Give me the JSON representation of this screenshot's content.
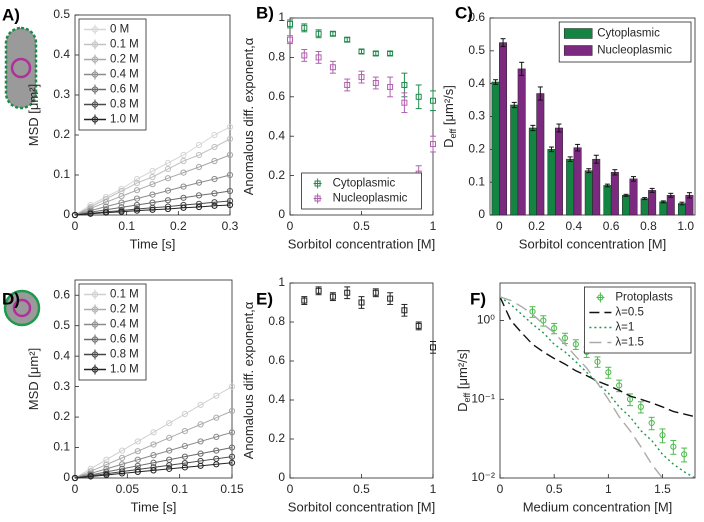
{
  "chart_data": [
    {
      "type": "line",
      "panel": "A)",
      "xlabel": "Time [s]",
      "ylabel": "MSD [μm²]",
      "xlim": [
        0,
        0.3
      ],
      "xticks": [
        0,
        0.1,
        0.2,
        0.3
      ],
      "ylim": [
        0,
        0.5
      ],
      "yticks": [
        0,
        0.1,
        0.2,
        0.3,
        0.4,
        0.5
      ],
      "legend": "upper left",
      "x": [
        0,
        0.03,
        0.06,
        0.09,
        0.12,
        0.15,
        0.18,
        0.21,
        0.24,
        0.27,
        0.3
      ],
      "series": [
        {
          "name": "0 M",
          "color": "#d6d6d6",
          "marker": "circle",
          "values": [
            0,
            0.025,
            0.045,
            0.065,
            0.09,
            0.11,
            0.13,
            0.15,
            0.175,
            0.2,
            0.22
          ]
        },
        {
          "name": "0.1 M",
          "color": "#c2c2c2",
          "marker": "circle",
          "values": [
            0,
            0.02,
            0.04,
            0.06,
            0.08,
            0.095,
            0.115,
            0.135,
            0.15,
            0.17,
            0.19
          ]
        },
        {
          "name": "0.2 M",
          "color": "#a8a8a8",
          "marker": "circle",
          "values": [
            0,
            0.016,
            0.032,
            0.047,
            0.062,
            0.077,
            0.092,
            0.106,
            0.12,
            0.135,
            0.15
          ]
        },
        {
          "name": "0.4 M",
          "color": "#8c8c8c",
          "marker": "circle",
          "values": [
            0,
            0.011,
            0.021,
            0.031,
            0.041,
            0.051,
            0.061,
            0.071,
            0.081,
            0.09,
            0.1
          ]
        },
        {
          "name": "0.6 M",
          "color": "#6b6b6b",
          "marker": "circle",
          "values": [
            0,
            0.007,
            0.013,
            0.019,
            0.025,
            0.031,
            0.037,
            0.043,
            0.049,
            0.054,
            0.06
          ]
        },
        {
          "name": "0.8 M",
          "color": "#4a4a4a",
          "marker": "circle",
          "values": [
            0,
            0.004,
            0.008,
            0.011,
            0.015,
            0.018,
            0.021,
            0.025,
            0.028,
            0.032,
            0.035
          ]
        },
        {
          "name": "1.0 M",
          "color": "#222222",
          "marker": "circle",
          "values": [
            0,
            0.003,
            0.006,
            0.008,
            0.011,
            0.013,
            0.015,
            0.018,
            0.02,
            0.023,
            0.025
          ]
        }
      ]
    },
    {
      "type": "scatter",
      "panel": "B)",
      "xlabel": "Sorbitol concentration [M]",
      "ylabel": "Anomalous diff. exponent,α",
      "xlim": [
        0,
        1
      ],
      "xticks": [
        0,
        0.5,
        1
      ],
      "ylim": [
        0,
        1
      ],
      "yticks": [
        0,
        0.2,
        0.4,
        0.6,
        0.8,
        1
      ],
      "legend": "lower center",
      "x": [
        0,
        0.1,
        0.2,
        0.3,
        0.4,
        0.5,
        0.6,
        0.7,
        0.8,
        0.9,
        1
      ],
      "series": [
        {
          "name": "Cytoplasmic",
          "color": "#1f8a4c",
          "marker": "square",
          "values": [
            0.97,
            0.95,
            0.92,
            0.92,
            0.89,
            0.83,
            0.82,
            0.82,
            0.66,
            0.6,
            0.58
          ],
          "errors": [
            0.02,
            0.02,
            0.02,
            0.01,
            0.01,
            0.01,
            0.01,
            0.01,
            0.06,
            0.06,
            0.05
          ]
        },
        {
          "name": "Nucleoplasmic",
          "color": "#b060b0",
          "marker": "square",
          "values": [
            0.89,
            0.81,
            0.8,
            0.75,
            0.66,
            0.7,
            0.67,
            0.65,
            0.57,
            0.21,
            0.36
          ],
          "errors": [
            0.02,
            0.03,
            0.03,
            0.03,
            0.03,
            0.03,
            0.03,
            0.05,
            0.05,
            0.04,
            0.04
          ]
        }
      ]
    },
    {
      "type": "bar",
      "panel": "C)",
      "xlabel": "Sorbitol concentration [M]",
      "ylabel": "D",
      "ylabel_sub": "eff",
      "ylabel_unit": " [μm²/s]",
      "ylim": [
        0,
        0.6
      ],
      "yticks": [
        0,
        0.1,
        0.2,
        0.3,
        0.4,
        0.5,
        0.6
      ],
      "legend": "upper right",
      "categories": [
        "0",
        null,
        "0.2",
        null,
        "0.4",
        null,
        "0.6",
        null,
        "0.8",
        null,
        "1.0"
      ],
      "series": [
        {
          "name": "Cytoplasmic",
          "color": "#148443",
          "values": [
            0.405,
            0.335,
            0.265,
            0.2,
            0.17,
            0.135,
            0.09,
            0.06,
            0.05,
            0.04,
            0.035
          ],
          "errors": [
            0.007,
            0.008,
            0.008,
            0.007,
            0.007,
            0.006,
            0.004,
            0.003,
            0.003,
            0.003,
            0.004
          ]
        },
        {
          "name": "Nucleoplasmic",
          "color": "#7b2a7f",
          "values": [
            0.525,
            0.445,
            0.37,
            0.265,
            0.205,
            0.17,
            0.13,
            0.11,
            0.075,
            0.06,
            0.06
          ],
          "errors": [
            0.012,
            0.02,
            0.02,
            0.012,
            0.01,
            0.012,
            0.008,
            0.007,
            0.006,
            0.006,
            0.008
          ]
        }
      ]
    },
    {
      "type": "line",
      "panel": "D)",
      "xlabel": "Time [s]",
      "ylabel": "MSD [μm²]",
      "xlim": [
        0,
        0.15
      ],
      "xticks": [
        0,
        0.05,
        0.1,
        0.15
      ],
      "ylim": [
        0,
        0.65
      ],
      "yticks": [
        0,
        0.1,
        0.2,
        0.3,
        0.4,
        0.5,
        0.6
      ],
      "legend": "upper left",
      "x": [
        0,
        0.015,
        0.03,
        0.045,
        0.06,
        0.075,
        0.09,
        0.105,
        0.12,
        0.135,
        0.15
      ],
      "series": [
        {
          "name": "0.1 M",
          "color": "#cfcfcf",
          "marker": "circle",
          "values": [
            0,
            0.03,
            0.06,
            0.09,
            0.12,
            0.15,
            0.18,
            0.21,
            0.24,
            0.27,
            0.3
          ]
        },
        {
          "name": "0.2 M",
          "color": "#ababab",
          "marker": "circle",
          "values": [
            0,
            0.022,
            0.044,
            0.066,
            0.088,
            0.11,
            0.132,
            0.154,
            0.176,
            0.198,
            0.22
          ]
        },
        {
          "name": "0.4 M",
          "color": "#8a8a8a",
          "marker": "circle",
          "values": [
            0,
            0.015,
            0.03,
            0.045,
            0.06,
            0.075,
            0.09,
            0.105,
            0.12,
            0.135,
            0.15
          ]
        },
        {
          "name": "0.6 M",
          "color": "#6a6a6a",
          "marker": "circle",
          "values": [
            0,
            0.01,
            0.02,
            0.03,
            0.04,
            0.05,
            0.06,
            0.07,
            0.08,
            0.09,
            0.1
          ]
        },
        {
          "name": "0.8 M",
          "color": "#474747",
          "marker": "circle",
          "values": [
            0,
            0.007,
            0.014,
            0.021,
            0.028,
            0.035,
            0.042,
            0.049,
            0.056,
            0.063,
            0.07
          ]
        },
        {
          "name": "1.0 M",
          "color": "#222222",
          "marker": "circle",
          "values": [
            0,
            0.005,
            0.01,
            0.015,
            0.02,
            0.025,
            0.03,
            0.035,
            0.04,
            0.045,
            0.05
          ]
        }
      ]
    },
    {
      "type": "scatter",
      "panel": "E)",
      "xlabel": "Sorbitol concentration [M]",
      "ylabel": "Anomalous diff. exponent,α",
      "xlim": [
        0,
        1
      ],
      "xticks": [
        0,
        0.5,
        1
      ],
      "ylim": [
        0,
        1
      ],
      "yticks": [
        0,
        0.2,
        0.4,
        0.6,
        0.8,
        1
      ],
      "x": [
        0.1,
        0.2,
        0.3,
        0.4,
        0.5,
        0.6,
        0.7,
        0.8,
        0.9,
        1
      ],
      "series": [
        {
          "color": "#222222",
          "marker": "square",
          "values": [
            0.91,
            0.96,
            0.93,
            0.95,
            0.9,
            0.95,
            0.92,
            0.86,
            0.78,
            0.67
          ],
          "errors": [
            0.02,
            0.02,
            0.02,
            0.03,
            0.03,
            0.02,
            0.03,
            0.03,
            0.02,
            0.03
          ]
        }
      ]
    },
    {
      "type": "line",
      "panel": "F)",
      "xlabel": "Medium concentration [M]",
      "ylabel": "D",
      "ylabel_sub": "eff",
      "ylabel_unit": " [μm²/s]",
      "log_y": true,
      "xlim": [
        0,
        1.8
      ],
      "xticks": [
        0,
        0.5,
        1,
        1.5
      ],
      "ylim": [
        0.01,
        3
      ],
      "yticks": [
        {
          "value": 0.01,
          "label": "10⁻²"
        },
        {
          "value": 0.1,
          "label": "10⁻¹"
        },
        {
          "value": 1,
          "label": "10⁰"
        }
      ],
      "legend": "upper right",
      "x": [
        0,
        0.1,
        0.2,
        0.3,
        0.4,
        0.5,
        0.6,
        0.7,
        0.8,
        0.9,
        1,
        1.1,
        1.2,
        1.3,
        1.4,
        1.5,
        1.6,
        1.7,
        1.8
      ],
      "series": [
        {
          "name": "Protoplasts",
          "color": "#4cbb4c",
          "marker": "circle",
          "line": false,
          "x": [
            0.3,
            0.4,
            0.5,
            0.6,
            0.7,
            0.8,
            0.9,
            1,
            1.1,
            1.2,
            1.3,
            1.4,
            1.5,
            1.6,
            1.7
          ],
          "values": [
            1.3,
            1.0,
            0.8,
            0.6,
            0.5,
            0.4,
            0.3,
            0.22,
            0.15,
            0.1,
            0.08,
            0.05,
            0.035,
            0.025,
            0.02
          ],
          "errors": [
            0.2,
            0.15,
            0.12,
            0.09,
            0.07,
            0.06,
            0.045,
            0.035,
            0.025,
            0.017,
            0.013,
            0.009,
            0.007,
            0.005,
            0.004
          ]
        },
        {
          "name": "λ=0.5",
          "color": "#111111",
          "dash": "10,5",
          "values": [
            2,
            1,
            0.7,
            0.5,
            0.4,
            0.33,
            0.28,
            0.23,
            0.2,
            0.17,
            0.15,
            0.13,
            0.11,
            0.1,
            0.09,
            0.08,
            0.07,
            0.065,
            0.06
          ]
        },
        {
          "name": "λ=1",
          "color": "#1a9a50",
          "dash": "2,3",
          "values": [
            2,
            1.6,
            1.2,
            0.9,
            0.7,
            0.5,
            0.4,
            0.3,
            0.22,
            0.16,
            0.12,
            0.08,
            0.06,
            0.04,
            0.03,
            0.02,
            0.015,
            0.012,
            0.01
          ]
        },
        {
          "name": "λ=1.5",
          "color": "#aaaaaa",
          "dash": "12,6",
          "values": [
            2,
            1.8,
            1.5,
            1.2,
            0.9,
            0.7,
            0.5,
            0.35,
            0.25,
            0.16,
            0.1,
            0.06,
            0.04,
            0.025,
            0.015,
            0.01,
            null,
            null,
            null
          ]
        }
      ]
    }
  ]
}
